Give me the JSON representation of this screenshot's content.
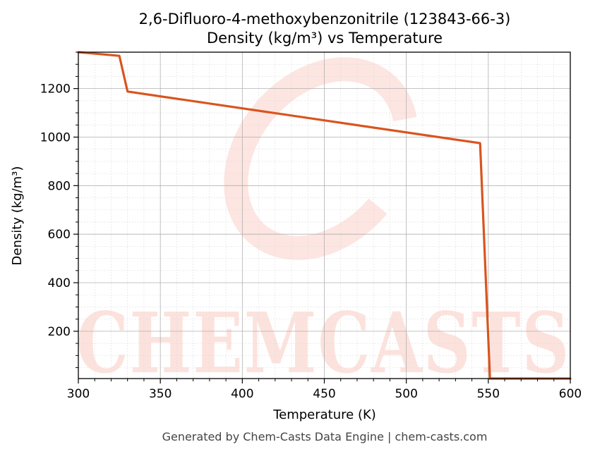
{
  "chart_data": {
    "type": "line",
    "title": "2,6-Difluoro-4-methoxybenzonitrile (123843-66-3)",
    "subtitle": "Density (kg/m³) vs Temperature",
    "xlabel": "Temperature (K)",
    "ylabel": "Density (kg/m³)",
    "xlim": [
      300,
      600
    ],
    "ylim": [
      5,
      1350
    ],
    "xticks": [
      300,
      350,
      400,
      450,
      500,
      550,
      600
    ],
    "yticks": [
      200,
      400,
      600,
      800,
      1000,
      1200
    ],
    "grid": true,
    "series": [
      {
        "color": "#d9541e",
        "x": [
          300,
          325,
          330,
          545,
          551,
          600
        ],
        "y": [
          1350,
          1335,
          1188,
          975,
          5,
          5
        ]
      }
    ]
  },
  "watermark": "CHEMCASTS",
  "footer": "Generated by Chem-Casts Data Engine | chem-casts.com"
}
